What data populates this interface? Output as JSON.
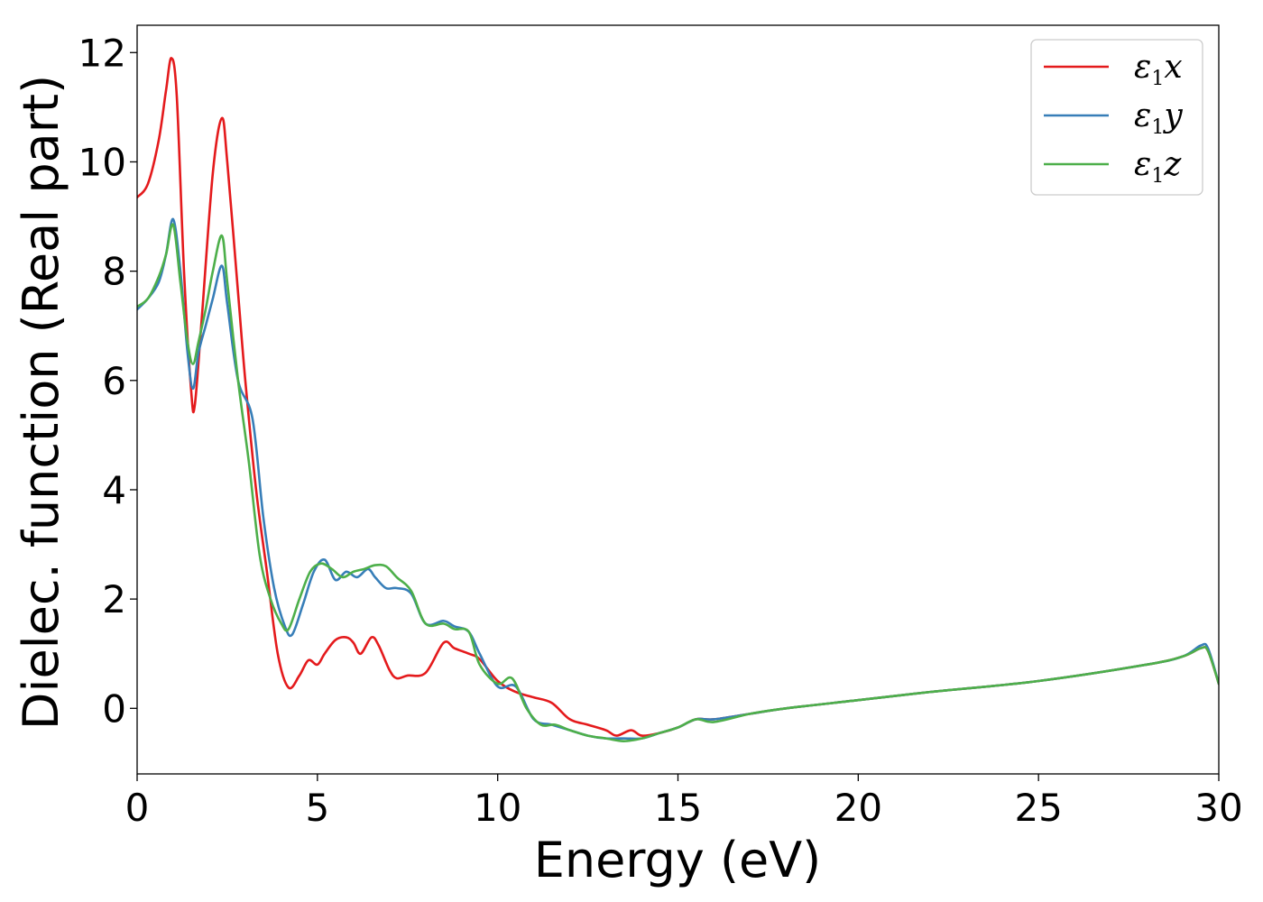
{
  "chart_data": {
    "type": "line",
    "xlabel": "Energy (eV)",
    "ylabel": "Dielec. function (Real part)",
    "xlim": [
      0,
      30
    ],
    "ylim": [
      -1.2,
      12.5
    ],
    "xticks": [
      0,
      5,
      10,
      15,
      20,
      25,
      30
    ],
    "yticks": [
      0,
      2,
      4,
      6,
      8,
      10,
      12
    ],
    "grid": false,
    "legend_position": "top-right",
    "series": [
      {
        "name": "ε1x",
        "legend_base": "ε",
        "legend_sub": "1",
        "legend_var": "x",
        "color": "#e41a1c",
        "x": [
          0,
          0.3,
          0.6,
          0.8,
          0.95,
          1.1,
          1.3,
          1.5,
          1.6,
          1.8,
          2.1,
          2.35,
          2.5,
          2.8,
          3.0,
          3.3,
          3.6,
          3.9,
          4.2,
          4.5,
          4.75,
          5.0,
          5.2,
          5.5,
          5.8,
          6.0,
          6.2,
          6.5,
          6.7,
          7.0,
          7.2,
          7.5,
          8.0,
          8.5,
          8.8,
          9.2,
          9.5,
          10.0,
          10.5,
          11.0,
          11.5,
          12.0,
          12.5,
          13.0,
          13.3,
          13.7,
          14.0,
          14.5,
          15.0,
          15.5,
          16.0,
          17.0,
          18.0,
          20.0,
          22.0,
          25.0,
          28.0,
          29.0,
          29.5,
          29.7,
          30.0
        ],
        "y": [
          9.35,
          9.6,
          10.4,
          11.3,
          11.9,
          11.2,
          8.0,
          5.8,
          5.55,
          7.2,
          9.8,
          10.8,
          10.0,
          7.6,
          6.0,
          4.0,
          2.5,
          1.0,
          0.38,
          0.6,
          0.88,
          0.8,
          1.0,
          1.25,
          1.3,
          1.2,
          1.0,
          1.3,
          1.15,
          0.7,
          0.55,
          0.6,
          0.65,
          1.2,
          1.1,
          1.0,
          0.9,
          0.5,
          0.3,
          0.2,
          0.1,
          -0.2,
          -0.3,
          -0.4,
          -0.5,
          -0.4,
          -0.5,
          -0.45,
          -0.35,
          -0.2,
          -0.2,
          -0.1,
          0.0,
          0.15,
          0.3,
          0.5,
          0.8,
          0.95,
          1.1,
          1.05,
          0.45
        ]
      },
      {
        "name": "ε1y",
        "legend_base": "ε",
        "legend_sub": "1",
        "legend_var": "y",
        "color": "#377eb8",
        "x": [
          0,
          0.3,
          0.6,
          0.8,
          1.0,
          1.2,
          1.4,
          1.55,
          1.7,
          1.9,
          2.1,
          2.35,
          2.5,
          2.8,
          3.2,
          3.5,
          3.8,
          4.1,
          4.3,
          4.6,
          4.9,
          5.2,
          5.5,
          5.8,
          6.1,
          6.4,
          6.6,
          6.9,
          7.2,
          7.6,
          8.0,
          8.5,
          8.8,
          9.2,
          9.5,
          10.0,
          10.5,
          11.0,
          11.5,
          12.0,
          12.5,
          13.0,
          13.5,
          14.0,
          14.5,
          15.0,
          15.5,
          16.0,
          17.0,
          18.0,
          20.0,
          22.0,
          25.0,
          28.0,
          29.0,
          29.5,
          29.7,
          30.0
        ],
        "y": [
          7.3,
          7.5,
          7.8,
          8.3,
          8.95,
          8.0,
          6.5,
          5.85,
          6.5,
          7.0,
          7.5,
          8.1,
          7.4,
          6.0,
          5.3,
          3.5,
          2.2,
          1.5,
          1.35,
          1.9,
          2.5,
          2.72,
          2.35,
          2.5,
          2.4,
          2.55,
          2.4,
          2.2,
          2.2,
          2.1,
          1.55,
          1.6,
          1.5,
          1.4,
          1.0,
          0.4,
          0.4,
          -0.2,
          -0.3,
          -0.4,
          -0.5,
          -0.55,
          -0.55,
          -0.55,
          -0.45,
          -0.35,
          -0.2,
          -0.2,
          -0.1,
          0.0,
          0.15,
          0.3,
          0.5,
          0.8,
          0.95,
          1.15,
          1.1,
          0.45
        ]
      },
      {
        "name": "ε1z",
        "legend_base": "ε",
        "legend_sub": "1",
        "legend_var": "z",
        "color": "#4daf4a",
        "x": [
          0,
          0.3,
          0.6,
          0.8,
          1.0,
          1.2,
          1.4,
          1.55,
          1.7,
          1.9,
          2.1,
          2.35,
          2.5,
          2.8,
          3.1,
          3.4,
          3.7,
          4.0,
          4.2,
          4.5,
          4.8,
          5.1,
          5.4,
          5.7,
          6.0,
          6.3,
          6.6,
          6.9,
          7.2,
          7.6,
          8.0,
          8.5,
          8.8,
          9.2,
          9.5,
          10.0,
          10.4,
          10.8,
          11.2,
          11.6,
          12.0,
          12.5,
          13.0,
          13.5,
          14.0,
          14.5,
          15.0,
          15.5,
          16.0,
          17.0,
          18.0,
          20.0,
          22.0,
          25.0,
          28.0,
          29.0,
          29.5,
          29.7,
          30.0
        ],
        "y": [
          7.35,
          7.5,
          7.9,
          8.3,
          8.85,
          7.8,
          6.7,
          6.3,
          6.7,
          7.3,
          8.0,
          8.65,
          7.8,
          6.0,
          4.5,
          2.8,
          2.0,
          1.55,
          1.45,
          2.0,
          2.5,
          2.65,
          2.55,
          2.4,
          2.5,
          2.55,
          2.62,
          2.6,
          2.4,
          2.15,
          1.55,
          1.55,
          1.45,
          1.4,
          0.8,
          0.45,
          0.55,
          0.0,
          -0.3,
          -0.3,
          -0.4,
          -0.5,
          -0.55,
          -0.6,
          -0.55,
          -0.45,
          -0.35,
          -0.2,
          -0.25,
          -0.1,
          0.0,
          0.15,
          0.3,
          0.5,
          0.8,
          0.95,
          1.1,
          1.05,
          0.45
        ]
      }
    ]
  }
}
